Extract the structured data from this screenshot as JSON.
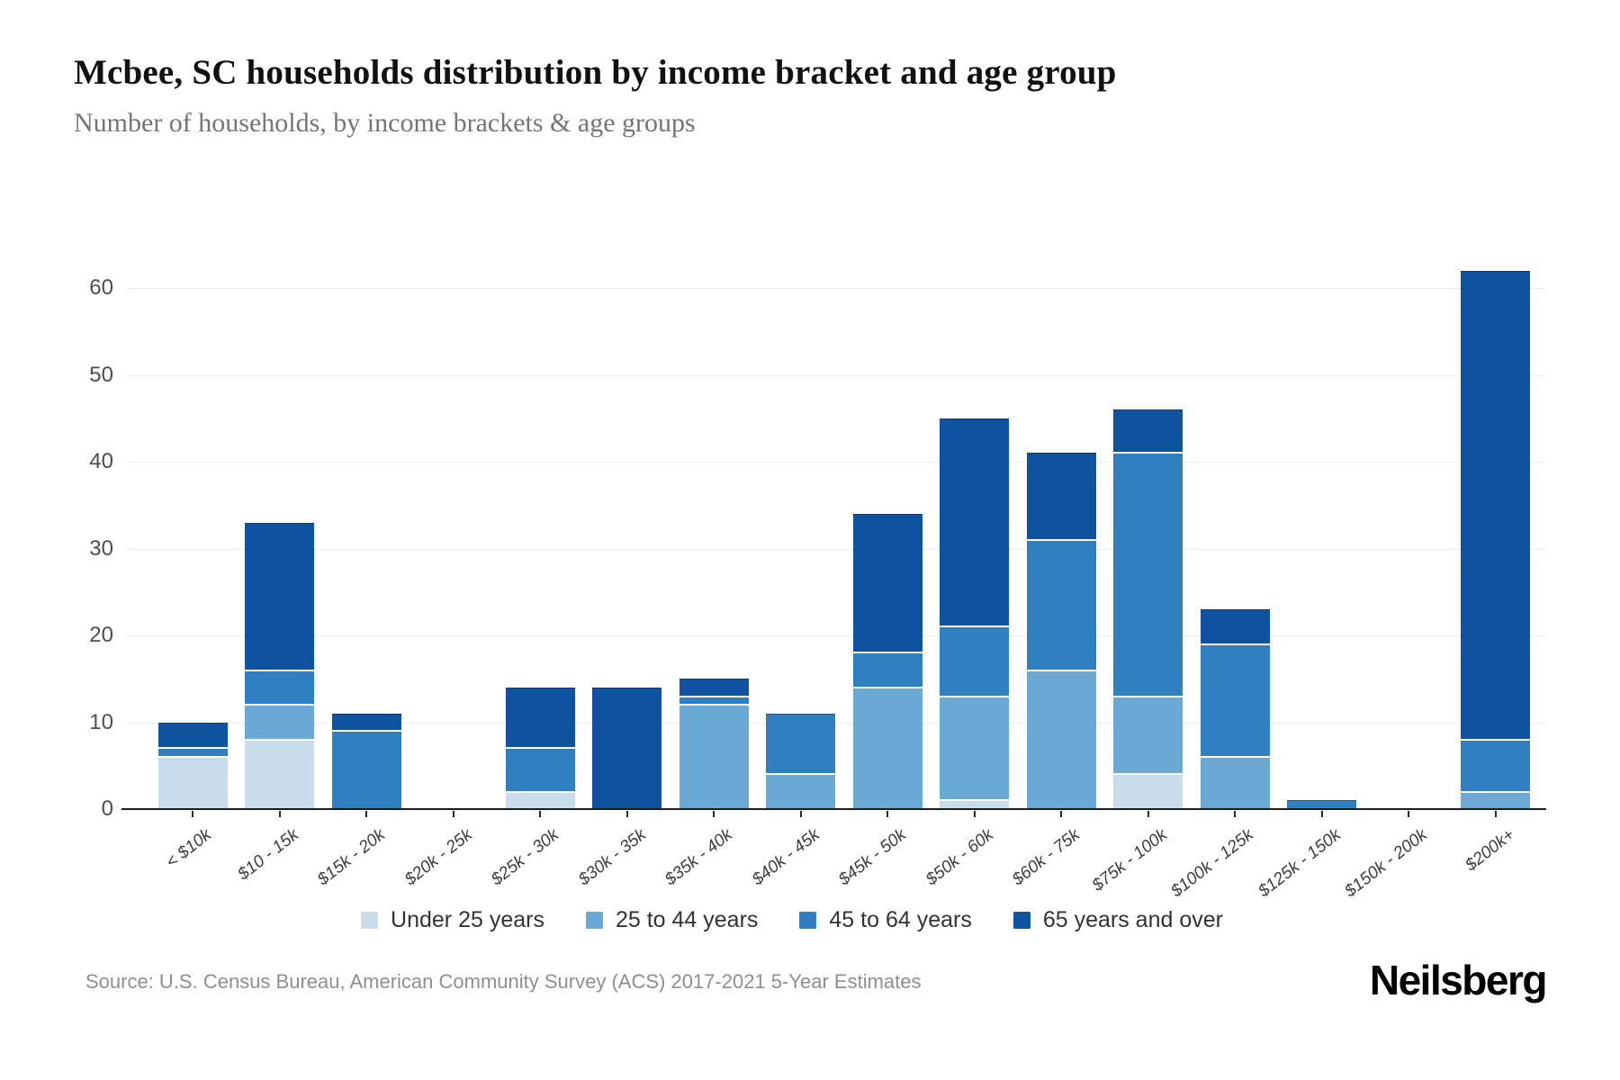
{
  "header": {
    "title": "Mcbee, SC households distribution by income bracket and age group",
    "subtitle": "Number of households, by income brackets & age groups"
  },
  "footer": {
    "source": "Source: U.S. Census Bureau, American Community Survey (ACS) 2017-2021 5-Year Estimates",
    "brand": "Neilsberg"
  },
  "colors": {
    "under_25": "#c9dcec",
    "age_25_44": "#6aa9d5",
    "age_45_64": "#2f7fc1",
    "age_65_over": "#0e52a0",
    "gridline": "#ededed",
    "axis": "#1c1c1c"
  },
  "chart_data": {
    "type": "bar",
    "stacked": true,
    "title": "Mcbee, SC households distribution by income bracket and age group",
    "xlabel": "",
    "ylabel": "",
    "grid": true,
    "legend_position": "bottom",
    "yticks": [
      0,
      10,
      20,
      30,
      40,
      50,
      60
    ],
    "ylim": [
      0,
      64
    ],
    "categories": [
      "< $10k",
      "$10 - 15k",
      "$15k - 20k",
      "$20k - 25k",
      "$25k - 30k",
      "$30k - 35k",
      "$35k - 40k",
      "$40k - 45k",
      "$45k - 50k",
      "$50k - 60k",
      "$60k - 75k",
      "$75k - 100k",
      "$100k - 125k",
      "$125k - 150k",
      "$150k - 200k",
      "$200k+"
    ],
    "series": [
      {
        "name": "Under 25 years",
        "color": "#c9dcec",
        "values": [
          6,
          8,
          0,
          0,
          2,
          0,
          0,
          0,
          0,
          1,
          0,
          4,
          0,
          0,
          0,
          0
        ]
      },
      {
        "name": "25 to 44 years",
        "color": "#6aa9d5",
        "values": [
          0,
          4,
          0,
          0,
          0,
          0,
          12,
          4,
          14,
          12,
          16,
          9,
          6,
          0,
          0,
          2
        ]
      },
      {
        "name": "45 to 64 years",
        "color": "#2f7fc1",
        "values": [
          1,
          4,
          9,
          0,
          5,
          0,
          1,
          7,
          4,
          8,
          15,
          28,
          13,
          1,
          0,
          6
        ]
      },
      {
        "name": "65 years and over",
        "color": "#0e52a0",
        "values": [
          3,
          17,
          2,
          0,
          7,
          14,
          2,
          0,
          16,
          24,
          10,
          5,
          4,
          0,
          0,
          54
        ]
      }
    ],
    "totals": [
      10,
      33,
      11,
      0,
      14,
      14,
      15,
      11,
      34,
      45,
      41,
      46,
      23,
      1,
      0,
      62
    ]
  }
}
